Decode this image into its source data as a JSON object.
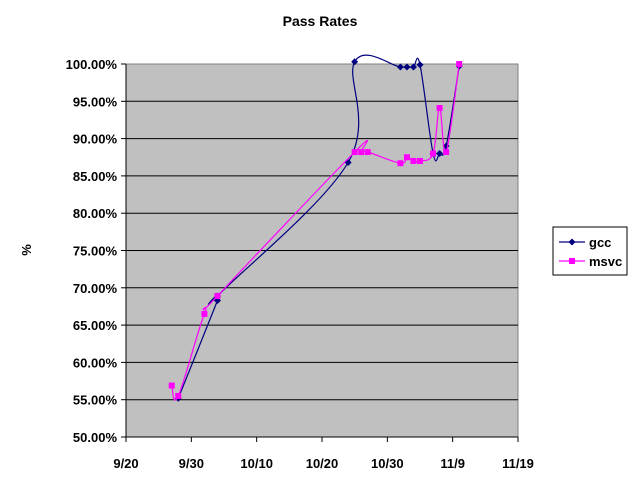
{
  "chart_data": {
    "type": "line",
    "title": "Pass Rates",
    "ylabel": "%",
    "xlabel": "",
    "x_axis": {
      "unit": "date (month/day)",
      "ticks": [
        "9/20",
        "9/30",
        "10/10",
        "10/20",
        "10/30",
        "11/9",
        "11/19"
      ],
      "range": [
        "9/20",
        "11/19"
      ]
    },
    "y_axis": {
      "ticks": [
        "50.00%",
        "55.00%",
        "60.00%",
        "65.00%",
        "70.00%",
        "75.00%",
        "80.00%",
        "85.00%",
        "90.00%",
        "95.00%",
        "100.00%"
      ],
      "range": [
        50,
        100
      ]
    },
    "grid": "horizontal",
    "plot_background": "#c0c0c0",
    "legend_position": "right",
    "series": [
      {
        "name": "gcc",
        "color": "#000080",
        "marker": "diamond",
        "points": [
          {
            "x": "9/28",
            "y": 55.2
          },
          {
            "x": "10/4",
            "y": 68.3
          },
          {
            "x": "10/4",
            "y": 68.9
          },
          {
            "x": "10/24",
            "y": 86.8
          },
          {
            "x": "10/25",
            "y": 100.3
          },
          {
            "x": "11/1",
            "y": 99.6
          },
          {
            "x": "11/2",
            "y": 99.6
          },
          {
            "x": "11/3",
            "y": 99.6
          },
          {
            "x": "11/4",
            "y": 99.9
          },
          {
            "x": "11/6",
            "y": 88.0
          },
          {
            "x": "11/7",
            "y": 88.0
          },
          {
            "x": "11/8",
            "y": 89.0
          },
          {
            "x": "11/10",
            "y": 99.7
          }
        ]
      },
      {
        "name": "msvc",
        "color": "#ff00ff",
        "marker": "square",
        "points": [
          {
            "x": "9/27",
            "y": 56.9
          },
          {
            "x": "9/28",
            "y": 55.5
          },
          {
            "x": "10/2",
            "y": 66.5
          },
          {
            "x": "10/4",
            "y": 68.9
          },
          {
            "x": "10/25",
            "y": 88.2
          },
          {
            "x": "10/26",
            "y": 88.2
          },
          {
            "x": "10/27",
            "y": 88.2
          },
          {
            "x": "11/1",
            "y": 86.7
          },
          {
            "x": "11/2",
            "y": 87.5
          },
          {
            "x": "11/3",
            "y": 87.0
          },
          {
            "x": "11/4",
            "y": 87.0
          },
          {
            "x": "11/6",
            "y": 88.0
          },
          {
            "x": "11/7",
            "y": 94.1
          },
          {
            "x": "11/8",
            "y": 88.2
          },
          {
            "x": "11/10",
            "y": 100.0
          }
        ]
      }
    ]
  }
}
